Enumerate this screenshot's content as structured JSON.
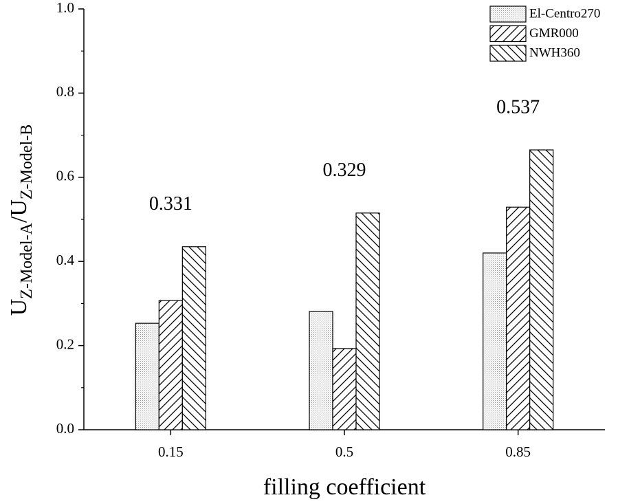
{
  "chart_data": {
    "type": "bar",
    "y_label": [
      {
        "text": "U",
        "sub": false
      },
      {
        "text": "Z-Model-A",
        "sub": true
      },
      {
        "text": "/U",
        "sub": false
      },
      {
        "text": "Z-Model-B",
        "sub": true
      }
    ],
    "x_label": "filling coefficient",
    "categories": [
      "0.15",
      "0.5",
      "0.85"
    ],
    "series": [
      {
        "name": "El-Centro270",
        "color": "#000000",
        "pattern": "dots",
        "values": [
          0.253,
          0.281,
          0.42
        ]
      },
      {
        "name": "GMR000",
        "color": "#000000",
        "pattern": "forward",
        "values": [
          0.307,
          0.193,
          0.529
        ]
      },
      {
        "name": "NWH360",
        "color": "#000000",
        "pattern": "backward",
        "values": [
          0.435,
          0.515,
          0.665
        ]
      }
    ],
    "annotations": [
      "0.331",
      "0.329",
      "0.537"
    ],
    "ylim": [
      0,
      1.0
    ],
    "yticks": [
      {
        "value": 0,
        "label": "0.0"
      },
      0.2,
      0.4,
      0.6,
      0.8,
      {
        "value": 1,
        "label": "1.0"
      }
    ],
    "legend": "top-right"
  }
}
